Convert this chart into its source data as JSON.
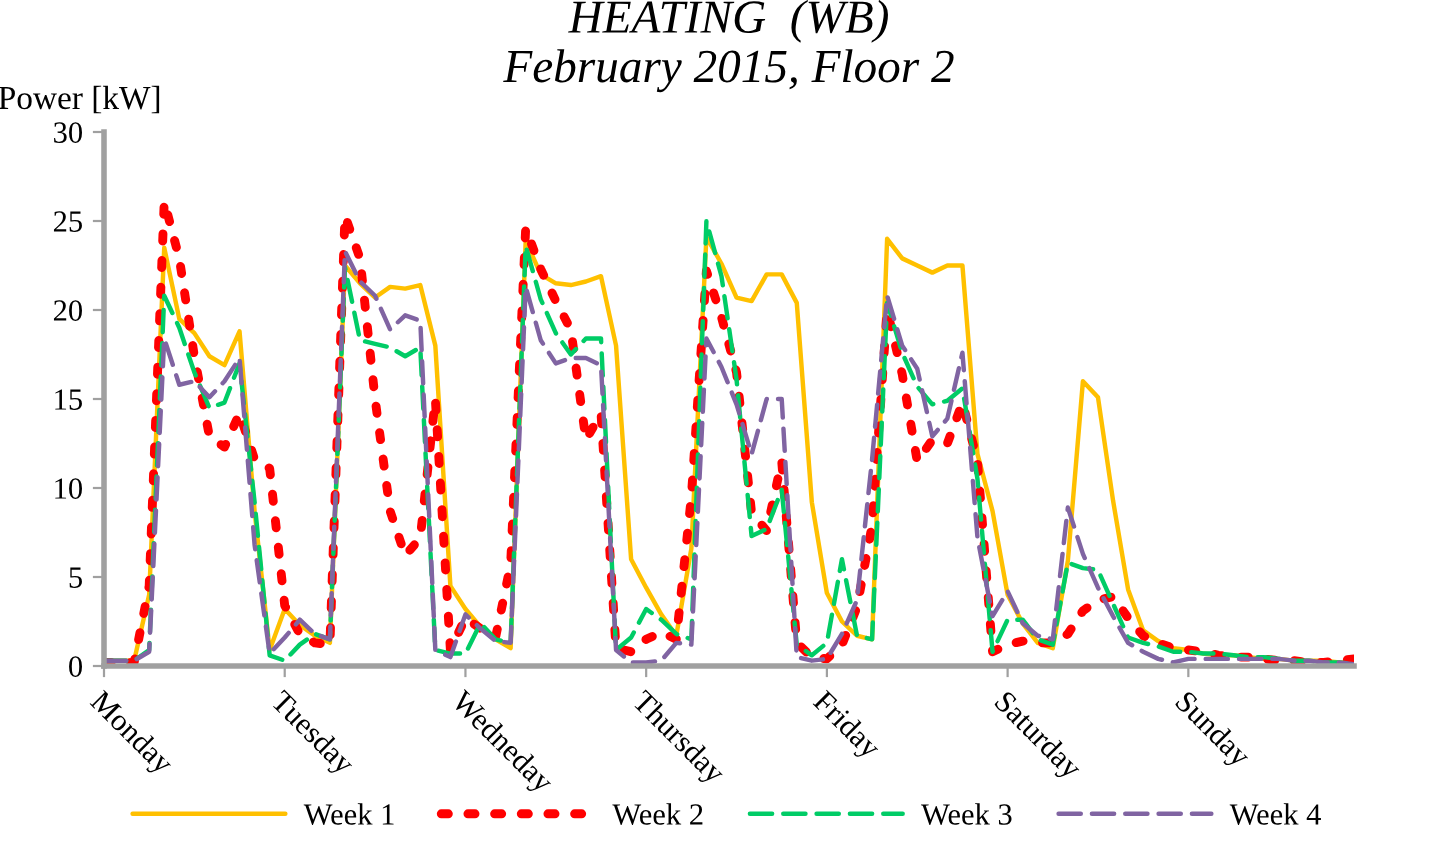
{
  "chart_data": {
    "type": "line",
    "title": "HEATING  (WB)\nFebruary 2015, Floor 2",
    "ylabel": "Power [kW]",
    "categories": [
      "Monday",
      null,
      null,
      null,
      null,
      null,
      null,
      null,
      null,
      null,
      null,
      null,
      "Tuesday",
      null,
      null,
      null,
      null,
      null,
      null,
      null,
      null,
      null,
      null,
      null,
      "Wedneday",
      null,
      null,
      null,
      null,
      null,
      null,
      null,
      null,
      null,
      null,
      null,
      "Thursday",
      null,
      null,
      null,
      null,
      null,
      null,
      null,
      null,
      null,
      null,
      null,
      "Friday",
      null,
      null,
      null,
      null,
      null,
      null,
      null,
      null,
      null,
      null,
      null,
      "Saturday",
      null,
      null,
      null,
      null,
      null,
      null,
      null,
      null,
      null,
      null,
      null,
      "Sunday",
      null,
      null,
      null,
      null,
      null,
      null,
      null,
      null,
      null,
      null,
      null
    ],
    "ylim": [
      0,
      30
    ],
    "yticks": [
      0,
      5,
      10,
      15,
      20,
      25,
      30
    ],
    "grid": false,
    "legend": "bottom",
    "marker": "none",
    "series": [
      {
        "name": "Week 1",
        "color": "#ffc000",
        "line_style": "solid",
        "values": [
          0.3,
          0.3,
          0.3,
          4,
          23.5,
          19.5,
          18.7,
          17.4,
          16.9,
          18.8,
          8.7,
          0.9,
          3.2,
          2.3,
          1.7,
          1.3,
          22.5,
          21.5,
          20.7,
          21.3,
          21.2,
          21.4,
          18,
          4.5,
          3.2,
          2.2,
          1.5,
          1.0,
          23.9,
          22,
          21.5,
          21.4,
          21.6,
          21.9,
          18,
          6,
          4.4,
          2.9,
          1.7,
          6.6,
          24.1,
          22.6,
          20.7,
          20.5,
          22,
          22,
          20.4,
          9.2,
          4.1,
          2.5,
          1.7,
          1.5,
          24,
          22.9,
          22.5,
          22.1,
          22.5,
          22.5,
          11.9,
          8.7,
          4,
          2.4,
          1.3,
          1.0,
          5.9,
          16,
          15.1,
          9.3,
          4.3,
          2.0,
          1.4,
          1.0,
          0.9,
          0.7,
          0.6,
          0.6,
          0.5,
          0.4,
          0.4,
          0.3,
          0.3,
          0.3,
          0.2,
          0.2
        ]
      },
      {
        "name": "Week 2",
        "color": "#ff0000",
        "line_style": "dotted",
        "values": [
          0.2,
          0.2,
          0.2,
          4.5,
          26.1,
          22.9,
          17.4,
          12.9,
          12.3,
          14.2,
          11.6,
          11.1,
          3.4,
          1.8,
          1.3,
          1.2,
          25.3,
          22.9,
          15,
          8.7,
          6.2,
          7.2,
          15,
          0.9,
          2.7,
          2.1,
          1.6,
          5.7,
          24.6,
          22.3,
          20.5,
          18.9,
          12.7,
          14.2,
          1.0,
          0.8,
          1.5,
          1.9,
          1.5,
          9.5,
          22.2,
          19.6,
          16.5,
          8.6,
          7.6,
          11.5,
          1.3,
          0.5,
          0.4,
          1.2,
          3.3,
          7.9,
          20,
          16.4,
          11.5,
          12.7,
          12.5,
          14.8,
          11.5,
          0.8,
          1.2,
          1.4,
          1.3,
          1.3,
          1.8,
          3.1,
          3.7,
          3.9,
          2.7,
          1.7,
          1.3,
          1.0,
          0.9,
          0.8,
          0.6,
          0.5,
          0.5,
          0.4,
          0.3,
          0.3,
          0.2,
          0.2,
          0.3,
          0.4
        ]
      },
      {
        "name": "Week 3",
        "color": "#00cc66",
        "line_style": "dashed",
        "values": [
          0.3,
          0.3,
          0.3,
          0.9,
          20.8,
          19,
          16.5,
          14.5,
          14.8,
          17,
          9.2,
          0.6,
          0.3,
          1.2,
          1.8,
          1.5,
          22.4,
          18.3,
          18.1,
          17.9,
          17.4,
          17.9,
          0.9,
          0.7,
          0.7,
          2.4,
          1.5,
          1.3,
          23.6,
          20.6,
          18.7,
          17.5,
          18.4,
          18.4,
          0.9,
          1.6,
          3.2,
          2.6,
          1.8,
          1.5,
          25,
          21.9,
          16.1,
          7.3,
          7.7,
          9.9,
          1.2,
          0.6,
          1.3,
          6,
          1.7,
          1.5,
          20.4,
          17.6,
          15.7,
          14.7,
          14.9,
          15.6,
          10.5,
          0.8,
          2.6,
          2.6,
          1.5,
          1.2,
          5.8,
          5.5,
          5.4,
          3.5,
          1.6,
          1.3,
          1.1,
          0.8,
          0.8,
          0.7,
          0.7,
          0.6,
          0.5,
          0.5,
          0.4,
          0.3,
          0.3,
          0.2,
          0.2,
          0.1
        ]
      },
      {
        "name": "Week 4",
        "color": "#8064a2",
        "line_style": "dashed",
        "values": [
          0.3,
          0.3,
          0.3,
          0.8,
          18.4,
          15.8,
          16,
          15.1,
          16,
          17.3,
          6.8,
          0.7,
          1.6,
          2.6,
          1.8,
          1.5,
          23.3,
          21.6,
          20.8,
          18.9,
          19.7,
          19.4,
          0.9,
          0.5,
          2.9,
          2.1,
          1.4,
          1.3,
          21.3,
          18.3,
          17,
          17.3,
          17.3,
          16.9,
          0.9,
          0.2,
          0.2,
          0.3,
          1.3,
          1.2,
          18.4,
          16.8,
          14.7,
          11.9,
          15,
          15,
          0.5,
          0.3,
          0.4,
          1.8,
          3.7,
          11.6,
          20.8,
          18,
          16.7,
          12.9,
          13.9,
          17.6,
          7.2,
          2.8,
          4.2,
          2.4,
          1.7,
          1.5,
          8.9,
          6.3,
          4.4,
          2.8,
          1.3,
          0.8,
          0.4,
          0.2,
          0.4,
          0.4,
          0.4,
          0.4,
          0.4,
          0.4,
          0.4,
          0.3,
          0.3,
          0.2,
          0.2,
          0.1
        ]
      }
    ]
  }
}
